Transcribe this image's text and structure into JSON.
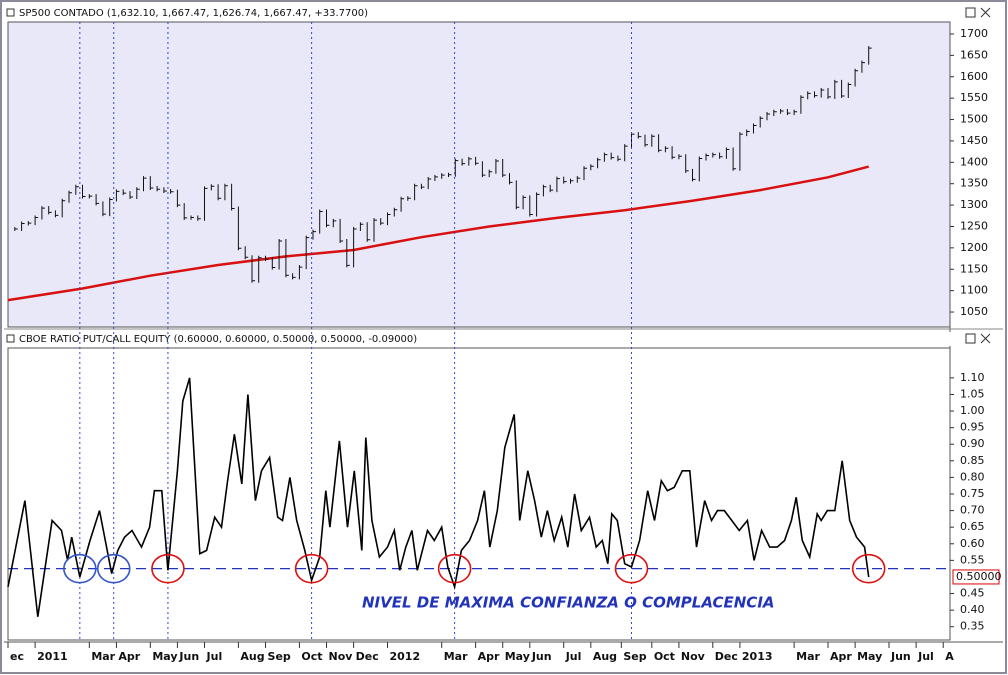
{
  "chart_data": [
    {
      "type": "price-bar",
      "title": "SP500 CONTADO (1,632.10, 1,667.47, 1,626.74, 1,667.47, +33.7700)",
      "color": "#111111",
      "values": [
        1244,
        1257,
        1258,
        1271,
        1293,
        1283,
        1276,
        1310,
        1329,
        1343,
        1320,
        1321,
        1304,
        1279,
        1313,
        1332,
        1328,
        1319,
        1337,
        1363,
        1340,
        1337,
        1333,
        1331,
        1300,
        1270,
        1271,
        1268,
        1339,
        1344,
        1316,
        1345,
        1292,
        1199,
        1178,
        1123,
        1177,
        1174,
        1154,
        1216,
        1136,
        1131,
        1155,
        1224,
        1238,
        1285,
        1253,
        1263,
        1216,
        1159,
        1244,
        1255,
        1219,
        1265,
        1258,
        1278,
        1289,
        1315,
        1316,
        1345,
        1342,
        1361,
        1366,
        1370,
        1371,
        1404,
        1397,
        1408,
        1398,
        1370,
        1378,
        1403,
        1370,
        1353,
        1295,
        1318,
        1278,
        1325,
        1343,
        1335,
        1362,
        1355,
        1357,
        1363,
        1386,
        1391,
        1406,
        1418,
        1411,
        1407,
        1438,
        1466,
        1460,
        1441,
        1461,
        1428,
        1433,
        1412,
        1414,
        1380,
        1360,
        1409,
        1416,
        1418,
        1413,
        1430,
        1385,
        1466,
        1472,
        1486,
        1503,
        1513,
        1518,
        1520,
        1515,
        1518,
        1552,
        1561,
        1556,
        1569,
        1553,
        1588,
        1555,
        1582,
        1614,
        1633,
        1667
      ],
      "moving_average": {
        "color": "#d81010",
        "x": [
          -1,
          10,
          20,
          30,
          40,
          50,
          60,
          70,
          80,
          90,
          100,
          110,
          120,
          126
        ],
        "values": [
          1078,
          1105,
          1135,
          1160,
          1180,
          1195,
          1225,
          1250,
          1270,
          1288,
          1310,
          1335,
          1365,
          1390
        ]
      },
      "xlim": [
        -1,
        138
      ],
      "ylim": [
        1015,
        1728
      ],
      "yticks": [
        1050,
        1100,
        1150,
        1200,
        1250,
        1300,
        1350,
        1400,
        1450,
        1500,
        1550,
        1600,
        1650,
        1700
      ],
      "tick_label_color": "#111111",
      "background": "#e8e8f8"
    },
    {
      "type": "line",
      "title": "CBOE RATIO PUT/CALL EQUITY (0.60000, 0.60000, 0.50000, 0.50000, -0.09000)",
      "color": "#000000",
      "x": [
        -1,
        1.5,
        3.4,
        5.5,
        6.9,
        7.8,
        8.4,
        9.6,
        11.1,
        12.5,
        14.3,
        15.2,
        16.2,
        17.3,
        18.7,
        19.9,
        20.6,
        21.7,
        22.6,
        24,
        24.8,
        25.8,
        27.3,
        28.3,
        29.5,
        30.5,
        31.4,
        32.4,
        33.5,
        34.4,
        35.5,
        36.4,
        37.6,
        38.8,
        39.5,
        40.6,
        41.6,
        42.8,
        43.8,
        45,
        45.9,
        46.5,
        47.9,
        49.1,
        50.1,
        51.2,
        51.8,
        52.7,
        53.8,
        55,
        56,
        56.8,
        57.7,
        58.6,
        59.4,
        60.9,
        61.9,
        63,
        63.9,
        64.9,
        65.9,
        67.1,
        68.3,
        69.3,
        70.1,
        71.2,
        72.3,
        73.7,
        74.5,
        75.7,
        76.7,
        77.7,
        78.6,
        79.6,
        80.7,
        81.6,
        82.6,
        83.6,
        84.8,
        85.8,
        86.7,
        87.5,
        88.1,
        88.9,
        90,
        91,
        92.2,
        93.4,
        94.4,
        95.4,
        96.3,
        97.3,
        98.5,
        99.6,
        100.6,
        101.8,
        102.8,
        103.7,
        104.7,
        105.8,
        106.9,
        108.1,
        109.1,
        110.2,
        111.4,
        112.5,
        113.6,
        114.6,
        115.3,
        116.2,
        117.3,
        118.4,
        119,
        119.9,
        121,
        122.1,
        123.2,
        124.2,
        125.4,
        126
      ],
      "values": [
        0.47,
        0.73,
        0.38,
        0.67,
        0.64,
        0.55,
        0.62,
        0.5,
        0.61,
        0.7,
        0.51,
        0.58,
        0.62,
        0.64,
        0.59,
        0.65,
        0.76,
        0.76,
        0.52,
        0.82,
        1.03,
        1.1,
        0.57,
        0.58,
        0.68,
        0.65,
        0.79,
        0.93,
        0.78,
        1.05,
        0.73,
        0.82,
        0.86,
        0.68,
        0.67,
        0.8,
        0.67,
        0.58,
        0.49,
        0.56,
        0.76,
        0.65,
        0.91,
        0.65,
        0.82,
        0.58,
        0.92,
        0.67,
        0.56,
        0.59,
        0.64,
        0.52,
        0.59,
        0.64,
        0.52,
        0.64,
        0.61,
        0.65,
        0.53,
        0.47,
        0.58,
        0.61,
        0.67,
        0.76,
        0.59,
        0.7,
        0.89,
        0.99,
        0.67,
        0.82,
        0.73,
        0.62,
        0.7,
        0.61,
        0.68,
        0.59,
        0.75,
        0.64,
        0.68,
        0.59,
        0.61,
        0.54,
        0.69,
        0.67,
        0.54,
        0.53,
        0.61,
        0.76,
        0.67,
        0.79,
        0.76,
        0.77,
        0.82,
        0.82,
        0.59,
        0.73,
        0.67,
        0.7,
        0.7,
        0.67,
        0.64,
        0.67,
        0.55,
        0.64,
        0.59,
        0.59,
        0.61,
        0.67,
        0.74,
        0.61,
        0.56,
        0.69,
        0.67,
        0.7,
        0.7,
        0.85,
        0.67,
        0.62,
        0.59,
        0.5
      ],
      "xlim": [
        -1,
        138
      ],
      "ylim": [
        0.31,
        1.19
      ],
      "yticks": [
        {
          "value": 1.1,
          "label": "1.10"
        },
        1.05,
        {
          "value": 1,
          "label": "1.00"
        },
        0.95,
        {
          "value": 0.9,
          "label": "0.90"
        },
        0.85,
        {
          "value": 0.8,
          "label": "0.80"
        },
        0.75,
        {
          "value": 0.7,
          "label": "0.70"
        },
        0.65,
        {
          "value": 0.6,
          "label": "0.60"
        },
        0.55,
        0.45,
        {
          "value": 0.4,
          "label": "0.40"
        },
        0.35
      ],
      "tick_label_color": "#dd0000",
      "level": 0.525,
      "level_color": "#2233bb",
      "last_label": {
        "value": 0.5,
        "label": "0.50000"
      },
      "annotation": "NIVEL DE MAXIMA CONFIANZA O COMPLACENCIA",
      "vlines": [
        9.6,
        14.6,
        22.6,
        43.8,
        64.9,
        91
      ],
      "vline_color": "#3344cc",
      "circles": [
        {
          "x": 9.6,
          "color": "#3355cc"
        },
        {
          "x": 14.6,
          "color": "#3355cc"
        },
        {
          "x": 22.6,
          "color": "#dd1111"
        },
        {
          "x": 43.8,
          "color": "#dd1111"
        },
        {
          "x": 64.9,
          "color": "#dd1111"
        },
        {
          "x": 91,
          "color": "#dd1111"
        },
        {
          "x": 126,
          "color": "#dd1111"
        }
      ],
      "xticks": [
        {
          "value": -1,
          "label": "ec"
        },
        {
          "value": 3,
          "label": "2011"
        },
        {
          "value": 11,
          "label": "Mar"
        },
        {
          "value": 15,
          "label": "Apr"
        },
        {
          "value": 20,
          "label": "May"
        },
        {
          "value": 24,
          "label": "Jun"
        },
        {
          "value": 28,
          "label": "Jul"
        },
        {
          "value": 33,
          "label": "Aug"
        },
        {
          "value": 37,
          "label": "Sep"
        },
        {
          "value": 42,
          "label": "Oct"
        },
        {
          "value": 46,
          "label": "Nov"
        },
        {
          "value": 50,
          "label": "Dec"
        },
        {
          "value": 55,
          "label": "2012"
        },
        {
          "value": 63,
          "label": "Mar"
        },
        {
          "value": 68,
          "label": "Apr"
        },
        {
          "value": 72,
          "label": "May"
        },
        {
          "value": 76,
          "label": "Jun"
        },
        {
          "value": 81,
          "label": "Jul"
        },
        {
          "value": 85,
          "label": "Aug"
        },
        {
          "value": 89.5,
          "label": "Sep"
        },
        {
          "value": 94,
          "label": "Oct"
        },
        {
          "value": 98,
          "label": "Nov"
        },
        {
          "value": 103,
          "label": "Dec"
        },
        {
          "value": 107,
          "label": "2013"
        },
        {
          "value": 115,
          "label": "Mar"
        },
        {
          "value": 120,
          "label": "Apr"
        },
        {
          "value": 124,
          "label": "May"
        },
        {
          "value": 129,
          "label": "Jun"
        },
        {
          "value": 133,
          "label": "Jul"
        },
        {
          "value": 137,
          "label": "A"
        }
      ],
      "background": "#ffffff"
    }
  ]
}
